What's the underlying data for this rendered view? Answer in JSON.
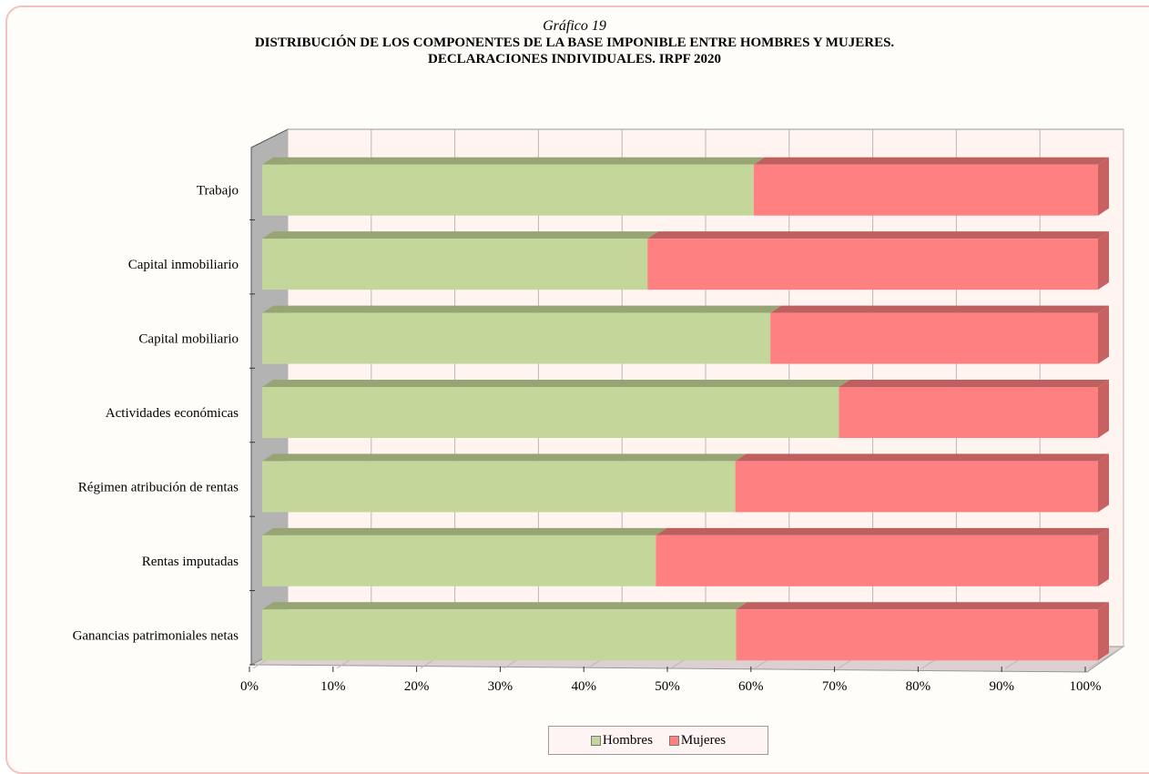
{
  "title": {
    "label": "Gráfico 19",
    "line1": "DISTRIBUCIÓN DE LOS COMPONENTES DE LA BASE IMPONIBLE ENTRE HOMBRES Y MUJERES.",
    "line2": "DECLARACIONES INDIVIDUALES. IRPF 2020"
  },
  "colors": {
    "hombres": "#c4d79b",
    "hombres_top": "#97a474",
    "mujeres": "#ff8080",
    "mujeres_top": "#bf6060",
    "mujeres_side": "#c86262",
    "plot_bg": "#fff4f0",
    "grid": "#bfb4b4",
    "wall": "#b3b3b3"
  },
  "chart_data": {
    "type": "bar",
    "orientation": "horizontal",
    "stacked": "100%",
    "style": "3d",
    "categories": [
      "Trabajo",
      "Capital inmobiliario",
      "Capital mobiliario",
      "Actividades económicas",
      "Régimen atribución de rentas",
      "Rentas imputadas",
      "Ganancias patrimoniales netas"
    ],
    "series": [
      {
        "name": "Hombres",
        "values": [
          58.8,
          46.1,
          60.8,
          69.0,
          56.6,
          47.1,
          56.7
        ]
      },
      {
        "name": "Mujeres",
        "values": [
          41.2,
          53.9,
          39.2,
          31.0,
          43.4,
          52.9,
          43.3
        ]
      }
    ],
    "x_ticks": [
      "0%",
      "10%",
      "20%",
      "30%",
      "40%",
      "50%",
      "60%",
      "70%",
      "80%",
      "90%",
      "100%"
    ],
    "xlim": [
      0,
      100
    ],
    "grid": true,
    "legend": "bottom"
  },
  "legend": {
    "hombres": "Hombres",
    "mujeres": "Mujeres"
  }
}
